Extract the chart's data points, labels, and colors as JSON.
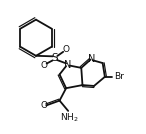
{
  "background_color": "#ffffff",
  "line_color": "#111111",
  "lw": 1.3,
  "lw_thin": 0.85,
  "fs": 6.5,
  "fs_br": 6.5,
  "xlim": [
    0.5,
    8.5
  ],
  "ylim": [
    1.8,
    9.5
  ]
}
